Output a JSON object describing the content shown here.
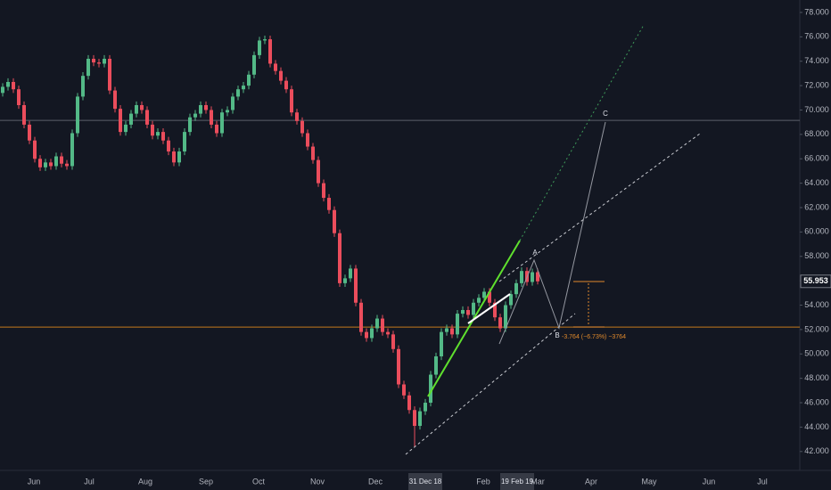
{
  "chart_data": {
    "type": "candlestick",
    "up_color": "#53b987",
    "down_color": "#eb4d5c",
    "background": "#131722",
    "open": [
      71.4,
      71.9,
      72.3,
      71.7,
      70.4,
      68.8,
      67.5,
      66.0,
      65.3,
      65.7,
      65.4,
      66.2,
      65.6,
      65.4,
      68.1,
      71.1,
      72.8,
      74.2,
      73.9,
      73.8,
      74.2,
      71.6,
      70.1,
      68.2,
      68.8,
      69.7,
      70.4,
      70.0,
      68.8,
      67.9,
      68.2,
      67.5,
      66.6,
      65.7,
      66.6,
      68.2,
      69.4,
      69.7,
      70.4,
      70.0,
      68.8,
      68.1,
      69.8,
      70.0,
      71.1,
      71.7,
      72.0,
      72.9,
      74.5,
      75.7,
      75.8,
      73.8,
      73.2,
      72.4,
      71.7,
      69.8,
      69.1,
      68.1,
      67.0,
      65.9,
      64.0,
      62.8,
      61.8,
      59.9,
      55.8,
      56.2,
      57.0,
      54.2,
      51.8,
      51.3,
      52.1,
      52.9,
      51.8,
      51.6,
      50.4,
      47.5,
      46.6,
      45.4,
      44.1,
      45.3,
      46.0,
      48.3,
      49.8,
      51.8,
      52.1,
      51.6,
      53.3,
      53.6,
      53.2,
      54.2,
      54.6,
      55.1,
      54.2,
      53.0,
      52.1,
      54.0,
      54.9,
      55.8,
      56.8,
      55.9,
      56.7
    ],
    "high": [
      72.2,
      72.6,
      72.6,
      72.0,
      70.7,
      69.1,
      67.8,
      66.3,
      66.0,
      66.0,
      66.5,
      66.5,
      65.9,
      68.4,
      71.4,
      73.1,
      74.5,
      74.5,
      74.2,
      74.5,
      74.5,
      71.9,
      70.4,
      69.1,
      70.0,
      70.7,
      70.7,
      70.3,
      69.1,
      68.5,
      68.5,
      67.8,
      66.9,
      66.9,
      68.5,
      69.7,
      70.0,
      70.7,
      70.7,
      70.3,
      69.1,
      70.1,
      70.3,
      71.4,
      72.0,
      72.3,
      73.2,
      74.8,
      76.0,
      76.1,
      76.1,
      74.1,
      73.5,
      72.7,
      72.0,
      70.1,
      69.4,
      68.4,
      67.3,
      66.2,
      64.3,
      63.1,
      62.1,
      60.2,
      56.5,
      57.3,
      57.3,
      54.5,
      52.1,
      52.4,
      53.2,
      53.2,
      52.1,
      51.9,
      50.7,
      47.8,
      46.9,
      45.7,
      45.6,
      46.3,
      48.6,
      50.1,
      52.1,
      52.4,
      52.4,
      53.6,
      53.9,
      53.9,
      54.5,
      54.9,
      55.4,
      55.4,
      54.5,
      53.3,
      54.3,
      55.2,
      56.1,
      57.1,
      57.1,
      57.0,
      57.0
    ],
    "low": [
      71.1,
      71.6,
      71.4,
      70.1,
      68.5,
      67.2,
      65.7,
      65.0,
      65.0,
      65.1,
      65.1,
      65.3,
      65.1,
      65.1,
      67.8,
      70.8,
      72.5,
      73.6,
      73.5,
      73.5,
      71.3,
      69.8,
      67.9,
      67.9,
      68.5,
      69.4,
      69.7,
      68.5,
      67.6,
      67.6,
      67.2,
      66.3,
      65.4,
      65.4,
      66.3,
      67.9,
      69.1,
      69.4,
      69.7,
      68.5,
      67.8,
      67.8,
      69.5,
      69.7,
      70.8,
      71.4,
      71.7,
      72.6,
      74.2,
      75.4,
      73.5,
      72.9,
      72.1,
      71.4,
      69.5,
      68.8,
      67.8,
      66.7,
      65.6,
      63.7,
      62.5,
      61.5,
      59.6,
      55.5,
      55.5,
      55.9,
      53.9,
      51.5,
      51.0,
      51.0,
      51.8,
      51.5,
      51.3,
      50.1,
      47.2,
      46.3,
      45.1,
      42.4,
      43.8,
      45.0,
      45.7,
      48.0,
      49.5,
      51.5,
      51.3,
      51.3,
      53.0,
      52.9,
      52.9,
      53.9,
      54.3,
      53.9,
      52.7,
      51.8,
      51.8,
      53.7,
      54.6,
      55.5,
      55.6,
      55.6,
      55.7
    ],
    "close": [
      71.9,
      72.3,
      71.7,
      70.4,
      68.8,
      67.5,
      66.0,
      65.3,
      65.7,
      65.4,
      66.2,
      65.6,
      65.4,
      68.1,
      71.1,
      72.8,
      74.2,
      73.9,
      73.8,
      74.2,
      71.6,
      70.1,
      68.2,
      68.8,
      69.7,
      70.4,
      70.0,
      68.8,
      67.9,
      68.2,
      67.5,
      66.6,
      65.7,
      66.6,
      68.2,
      69.4,
      69.7,
      70.4,
      70.0,
      68.8,
      68.1,
      69.8,
      70.0,
      71.1,
      71.7,
      72.0,
      72.9,
      74.5,
      75.7,
      75.8,
      73.8,
      73.2,
      72.4,
      71.7,
      69.8,
      69.1,
      68.1,
      67.0,
      65.9,
      64.0,
      62.8,
      61.8,
      59.9,
      55.8,
      56.2,
      57.0,
      54.2,
      51.8,
      51.3,
      52.1,
      52.9,
      51.8,
      51.6,
      50.4,
      47.5,
      46.6,
      45.4,
      44.1,
      45.3,
      46.0,
      48.3,
      49.8,
      51.8,
      52.1,
      51.6,
      53.3,
      53.6,
      53.2,
      54.2,
      54.6,
      55.1,
      54.2,
      53.0,
      52.1,
      54.0,
      54.9,
      55.8,
      56.8,
      55.9,
      56.7,
      55.953
    ],
    "ylim": [
      40.45,
      79.02
    ],
    "yticks": [
      {
        "value": 42,
        "label": "42.000"
      },
      {
        "value": 44,
        "label": "44.000"
      },
      {
        "value": 46,
        "label": "46.000"
      },
      {
        "value": 48,
        "label": "48.000"
      },
      {
        "value": 50,
        "label": "50.000"
      },
      {
        "value": 52,
        "label": "52.000"
      },
      {
        "value": 54,
        "label": "54.000"
      },
      {
        "value": 56,
        "label": "56.000"
      },
      {
        "value": 58,
        "label": "58.000"
      },
      {
        "value": 60,
        "label": "60.000"
      },
      {
        "value": 62,
        "label": "62.000"
      },
      {
        "value": 64,
        "label": "64.000"
      },
      {
        "value": 66,
        "label": "66.000"
      },
      {
        "value": 68,
        "label": "68.000"
      },
      {
        "value": 70,
        "label": "70.000"
      },
      {
        "value": 72,
        "label": "72.000"
      },
      {
        "value": 74,
        "label": "74.000"
      },
      {
        "value": 76,
        "label": "76.000"
      },
      {
        "value": 78,
        "label": "78.000"
      }
    ],
    "x_labels": [
      "Jun",
      "Jul",
      "Aug",
      "Sep",
      "Oct",
      "Nov",
      "Dec",
      "31 Dec 18",
      "Feb",
      "19 Feb 19",
      "Mar",
      "Apr",
      "May",
      "Jun",
      "Jul"
    ],
    "hlines": [
      {
        "value": 69.15,
        "color": "#5d606b"
      },
      {
        "value": 52.2,
        "color": "#c47a1d"
      }
    ],
    "annotations": [
      "A",
      "B",
      "C"
    ],
    "measure_label": "-3.764 (−6.73%) −3764"
  }
}
